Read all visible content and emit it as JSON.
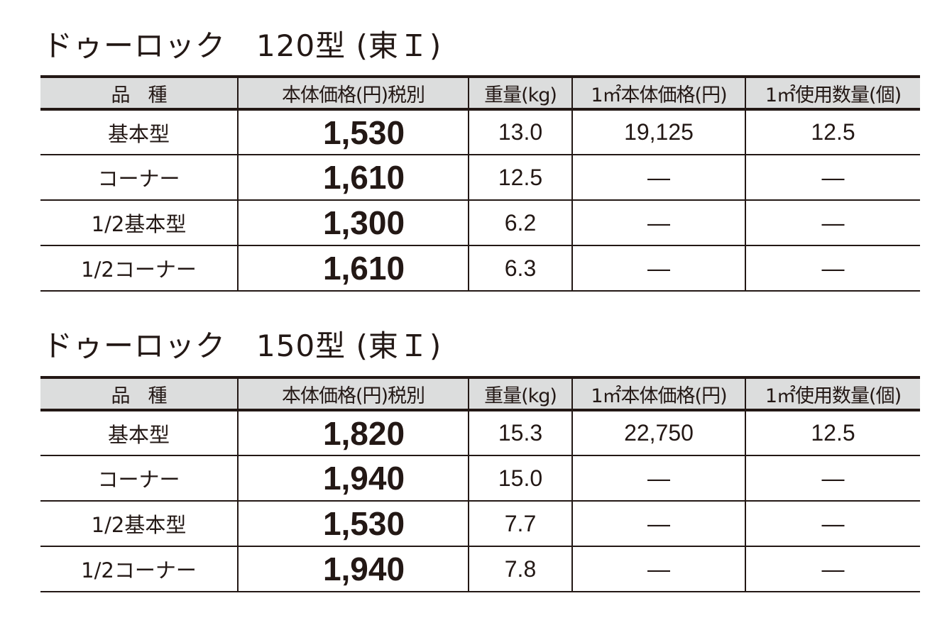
{
  "headers": [
    "品　種",
    "本体価格(円)税別",
    "重量(kg)",
    "1㎡本体価格(円)",
    "1㎡使用数量(個)"
  ],
  "tables": [
    {
      "title": "ドゥーロック　120型 (東Ｉ)",
      "rows": [
        [
          "基本型",
          "1,530",
          "13.0",
          "19,125",
          "12.5"
        ],
        [
          "コーナー",
          "1,610",
          "12.5",
          "—",
          "—"
        ],
        [
          "1/2基本型",
          "1,300",
          "6.2",
          "—",
          "—"
        ],
        [
          "1/2コーナー",
          "1,610",
          "6.3",
          "—",
          "—"
        ]
      ]
    },
    {
      "title": "ドゥーロック　150型 (東Ｉ)",
      "rows": [
        [
          "基本型",
          "1,820",
          "15.3",
          "22,750",
          "12.5"
        ],
        [
          "コーナー",
          "1,940",
          "15.0",
          "—",
          "—"
        ],
        [
          "1/2基本型",
          "1,530",
          "7.7",
          "—",
          "—"
        ],
        [
          "1/2コーナー",
          "1,940",
          "7.8",
          "—",
          "—"
        ]
      ]
    }
  ],
  "colors": {
    "text": "#231815",
    "header_bg": "#dcdddd"
  }
}
